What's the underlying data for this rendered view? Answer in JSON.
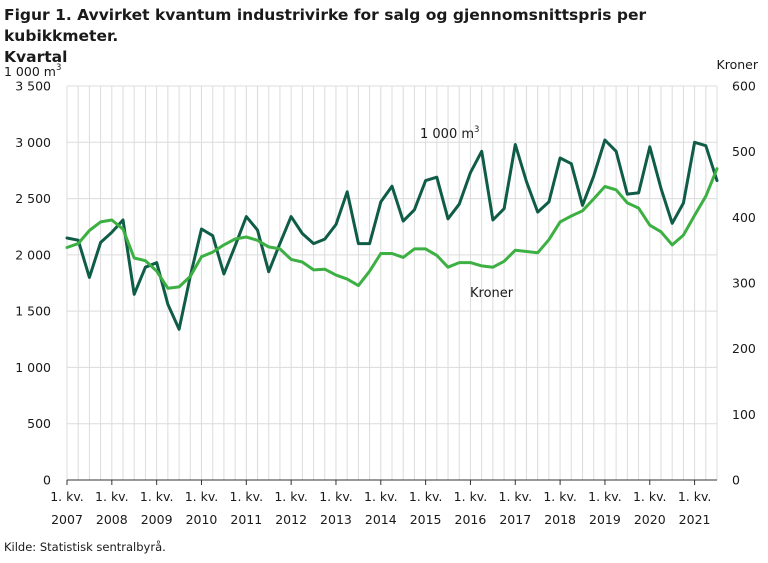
{
  "title_line1": "Figur 1. Avvirket kvantum industrivirke for salg og gjennomsnittspris per kubikkmeter.",
  "title_line2": "Kvartal",
  "source": "Kilde: Statistisk sentralbyrå.",
  "chart_data": {
    "type": "line",
    "left_axis_unit": "1 000 m",
    "left_axis_unit_sup": "3",
    "right_axis_unit": "Kroner",
    "left_ylim": [
      0,
      3500
    ],
    "right_ylim": [
      0,
      600
    ],
    "left_ticks": [
      0,
      500,
      1000,
      1500,
      2000,
      2500,
      3000,
      3500
    ],
    "left_tick_labels": [
      "0",
      "500",
      "1 000",
      "1 500",
      "2 000",
      "2 500",
      "3 000",
      "3 500"
    ],
    "right_ticks": [
      0,
      100,
      200,
      300,
      400,
      500,
      600
    ],
    "right_tick_labels": [
      "0",
      "100",
      "200",
      "300",
      "400",
      "500",
      "600"
    ],
    "x_tick_line1": "1. kv.",
    "x_tick_years": [
      "2007",
      "2008",
      "2009",
      "2010",
      "2011",
      "2012",
      "2013",
      "2014",
      "2015",
      "2016",
      "2017",
      "2018",
      "2019",
      "2020",
      "2021"
    ],
    "grid": true,
    "colors": {
      "volume": "#0f5c47",
      "price": "#3cb043"
    },
    "series": [
      {
        "name": "1 000 m3",
        "label_text": "1 000 m",
        "label_sup": "3",
        "axis": "left",
        "color": "#0f5c47",
        "values": [
          2150,
          2130,
          1800,
          2110,
          2200,
          2310,
          1650,
          1890,
          1930,
          1560,
          1340,
          1810,
          2230,
          2170,
          1830,
          2080,
          2340,
          2220,
          1850,
          2100,
          2340,
          2190,
          2100,
          2140,
          2270,
          2560,
          2100,
          2100,
          2470,
          2610,
          2300,
          2400,
          2660,
          2690,
          2320,
          2450,
          2730,
          2920,
          2310,
          2410,
          2980,
          2650,
          2380,
          2470,
          2860,
          2810,
          2440,
          2700,
          3020,
          2920,
          2540,
          2550,
          2960,
          2590,
          2280,
          2460,
          3000,
          2970,
          2660
        ]
      },
      {
        "name": "Kroner",
        "label_text": "Kroner",
        "axis": "right",
        "color": "#3cb043",
        "values": [
          354,
          360,
          380,
          393,
          396,
          382,
          338,
          334,
          318,
          292,
          294,
          310,
          340,
          347,
          358,
          367,
          370,
          365,
          355,
          352,
          336,
          332,
          320,
          321,
          312,
          306,
          296,
          318,
          345,
          345,
          339,
          352,
          352,
          342,
          324,
          331,
          331,
          326,
          324,
          333,
          350,
          348,
          346,
          366,
          393,
          402,
          410,
          428,
          447,
          442,
          422,
          414,
          388,
          378,
          358,
          373,
          403,
          432,
          474
        ]
      }
    ]
  }
}
